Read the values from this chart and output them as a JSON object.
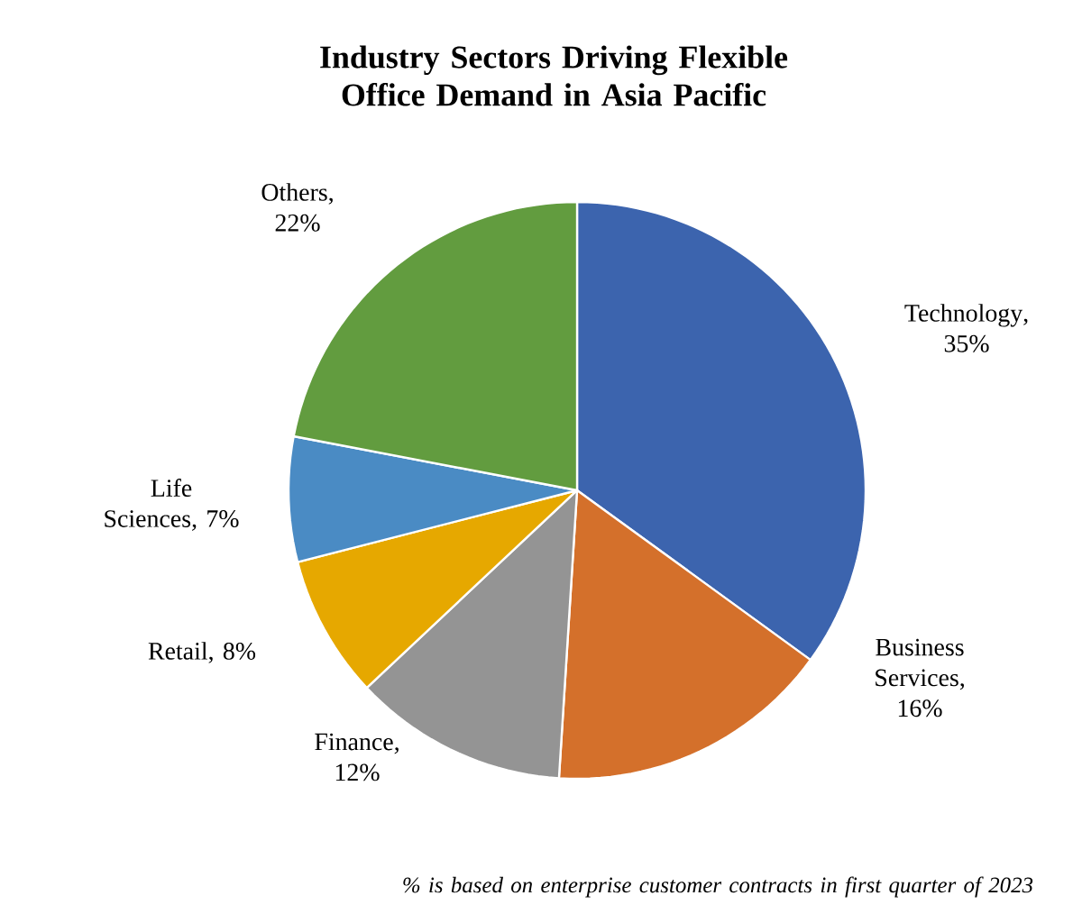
{
  "chart_data": {
    "type": "pie",
    "title": "Industry Sectors Driving Flexible Office Demand in Asia Pacific",
    "categories": [
      "Technology",
      "Business Services",
      "Finance",
      "Retail",
      "Life Sciences",
      "Others"
    ],
    "values": [
      35,
      16,
      12,
      8,
      7,
      22
    ],
    "value_labels": [
      ", 35%",
      ", 16%",
      ", 12%",
      ", 8%",
      ", 7%",
      ", 22%"
    ],
    "colors": [
      "#3c64ae",
      "#d4702b",
      "#949494",
      "#e6a800",
      "#4a8bc4",
      "#629c3f"
    ],
    "legend": false,
    "annotations": [
      "*% is based on enterprise customer contracts in first quarter of 2023*"
    ]
  }
}
